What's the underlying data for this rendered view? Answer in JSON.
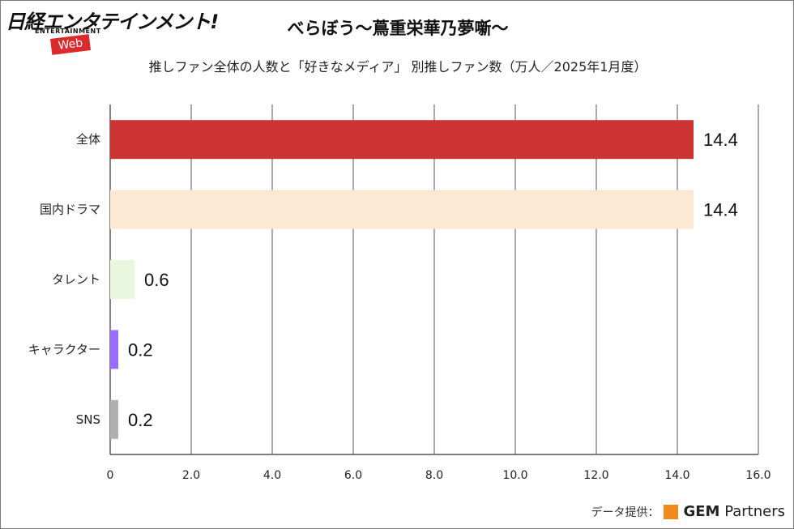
{
  "logo": {
    "main": "日経エンタテインメント!",
    "sub": "ENTERTAINMENT",
    "badge": "Web"
  },
  "header": {
    "title": "べらぼう～蔦重栄華乃夢噺～",
    "subtitle": "推しファン全体の人数と「好きなメディア」 別推しファン数（万人／2025年1月度）"
  },
  "credit": {
    "label": "データ提供：",
    "brand_bold": "GEM",
    "brand_rest": " Partners",
    "brand_color": "#f08a1c"
  },
  "chart_data": {
    "type": "bar",
    "orientation": "horizontal",
    "title": "べらぼう～蔦重栄華乃夢噺～",
    "subtitle": "推しファン全体の人数と「好きなメディア」 別推しファン数（万人／2025年1月度）",
    "categories": [
      "全体",
      "国内ドラマ",
      "タレント",
      "キャラクター",
      "SNS"
    ],
    "values": [
      14.4,
      14.4,
      0.6,
      0.2,
      0.2
    ],
    "value_labels": [
      "14.4",
      "14.4",
      "0.6",
      "0.2",
      "0.2"
    ],
    "colors": [
      "#cc3333",
      "#fde9d3",
      "#e9f7df",
      "#9b6dff",
      "#b0b0b0"
    ],
    "xlim": [
      0,
      16
    ],
    "xticks": [
      "0",
      "2.0",
      "4.0",
      "6.0",
      "8.0",
      "10.0",
      "12.0",
      "14.0",
      "16.0"
    ],
    "xtick_values": [
      0,
      2,
      4,
      6,
      8,
      10,
      12,
      14,
      16
    ],
    "grid": "vertical",
    "legend": "none"
  }
}
